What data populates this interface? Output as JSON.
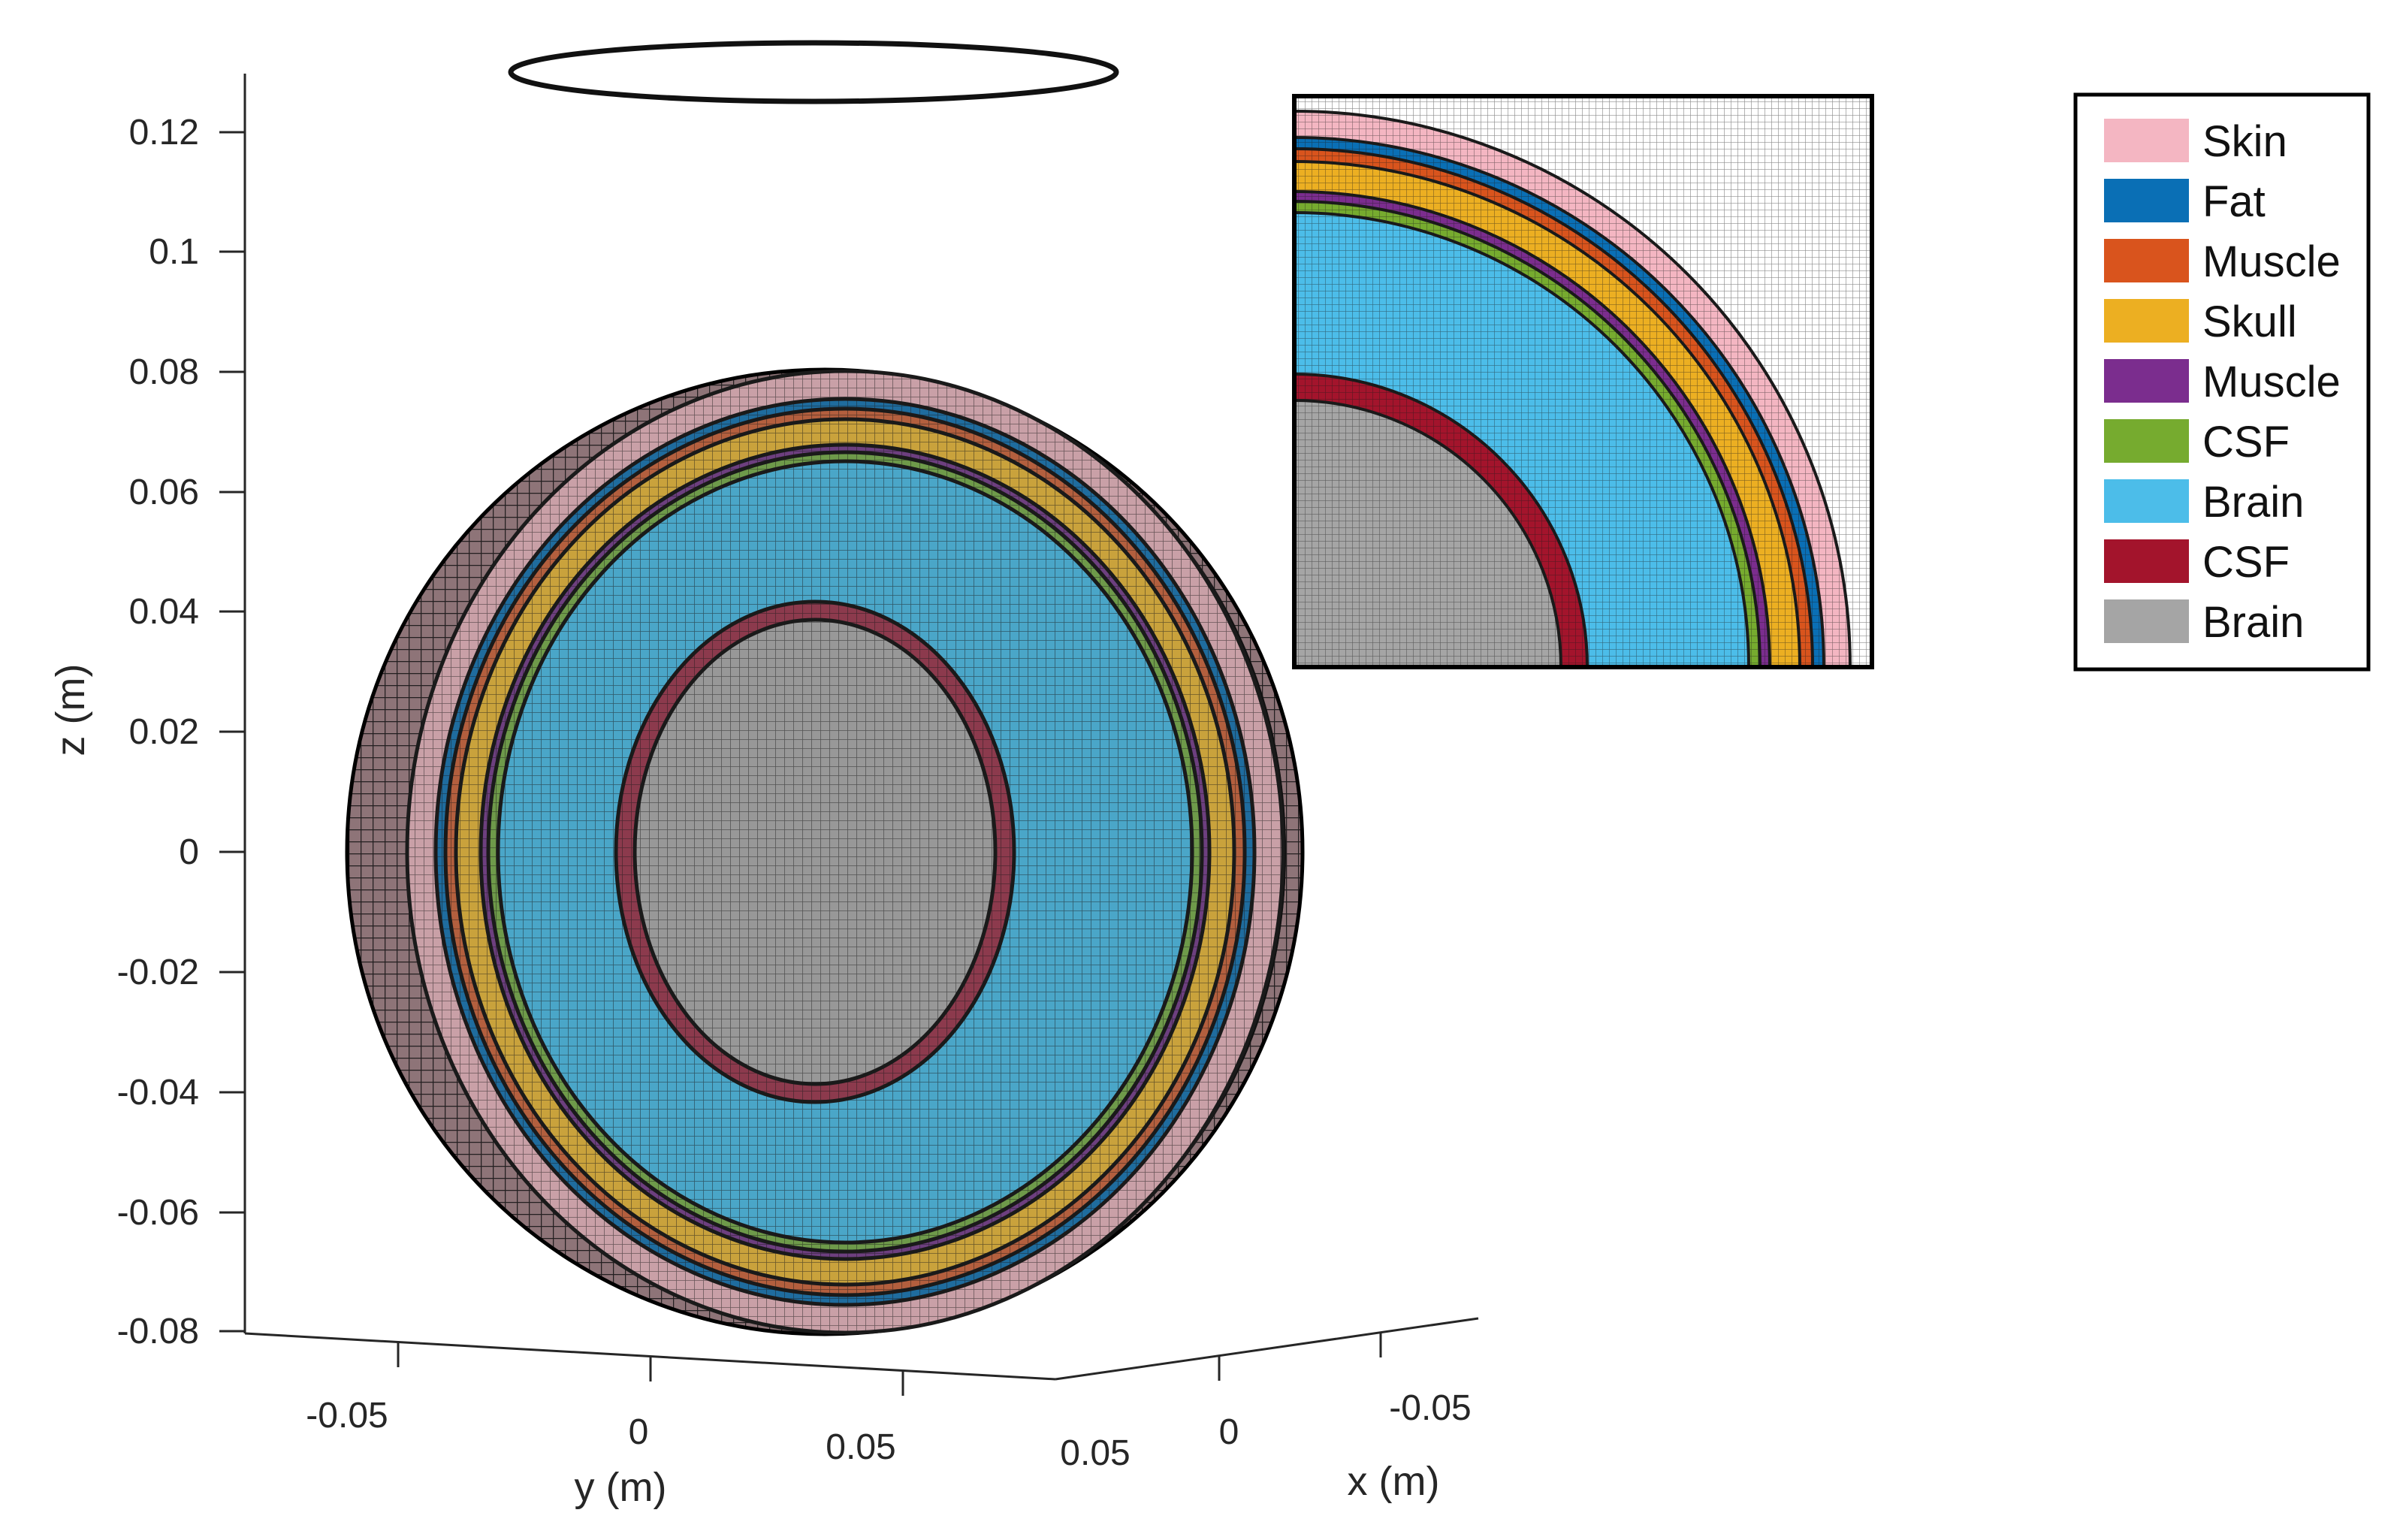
{
  "axes": {
    "z_label": "z (m)",
    "y_label": "y (m)",
    "x_label": "x (m)",
    "z_ticks": [
      "0.12",
      "0.1",
      "0.08",
      "0.06",
      "0.04",
      "0.02",
      "0",
      "-0.02",
      "-0.04",
      "-0.06",
      "-0.08"
    ],
    "y_ticks": [
      "-0.05",
      "0",
      "0.05"
    ],
    "x_ticks": [
      "0.05",
      "0",
      "-0.05"
    ]
  },
  "legend": {
    "items": [
      {
        "label": "Skin",
        "color": "#f4b6c2"
      },
      {
        "label": "Fat",
        "color": "#0a6fb5"
      },
      {
        "label": "Muscle",
        "color": "#d9541d"
      },
      {
        "label": "Skull",
        "color": "#ecaf22"
      },
      {
        "label": "Muscle",
        "color": "#7b2d8e"
      },
      {
        "label": "CSF",
        "color": "#76ab2f"
      },
      {
        "label": "Brain",
        "color": "#4cbde9"
      },
      {
        "label": "CSF",
        "color": "#a3142c"
      },
      {
        "label": "Brain",
        "color": "#a5a5a5"
      }
    ]
  },
  "colors": {
    "grid_line": "#2a2a2a",
    "axis_line": "#262626",
    "side_shell": "#8e7478"
  }
}
